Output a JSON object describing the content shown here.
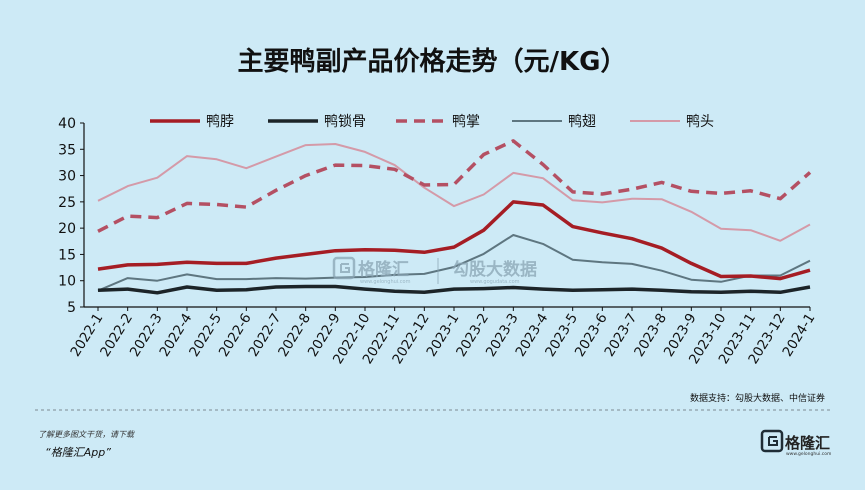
{
  "chart_data": {
    "type": "line",
    "title": "主要鸭副产品价格走势（元/KG）",
    "categories": [
      "2022-1",
      "2022-2",
      "2022-3",
      "2022-4",
      "2022-5",
      "2022-6",
      "2022-7",
      "2022-8",
      "2022-9",
      "2022-10",
      "2022-11",
      "2022-12",
      "2023-1",
      "2023-2",
      "2023-3",
      "2023-4",
      "2023-5",
      "2023-6",
      "2023-7",
      "2023-8",
      "2023-9",
      "2023-10",
      "2023-11",
      "2023-12",
      "2024-1"
    ],
    "ylim": [
      5,
      40
    ],
    "yticks": [
      5,
      10,
      15,
      20,
      25,
      30,
      35,
      40
    ],
    "legend_position": "top",
    "series": [
      {
        "name": "鸭脖",
        "color": "#a51d24",
        "style": "solid",
        "width": 3.5,
        "values": [
          12.2,
          13.0,
          13.1,
          13.5,
          13.3,
          13.3,
          14.3,
          15.0,
          15.7,
          15.9,
          15.8,
          15.4,
          16.4,
          19.6,
          25.0,
          24.4,
          20.3,
          19.1,
          18.0,
          16.2,
          13.3,
          10.8,
          10.9,
          10.4,
          12.0
        ]
      },
      {
        "name": "鸭锁骨",
        "color": "#1c2428",
        "style": "solid",
        "width": 3.5,
        "values": [
          8.2,
          8.4,
          7.7,
          8.8,
          8.2,
          8.3,
          8.8,
          8.9,
          8.9,
          8.4,
          8.0,
          7.8,
          8.4,
          8.5,
          8.7,
          8.4,
          8.2,
          8.3,
          8.4,
          8.2,
          7.9,
          7.8,
          8.0,
          7.8,
          8.8
        ]
      },
      {
        "name": "鸭掌",
        "color": "#b45063",
        "style": "dashed",
        "width": 3.5,
        "values": [
          19.4,
          22.3,
          22.0,
          24.7,
          24.5,
          24.0,
          27.2,
          30.0,
          32.0,
          31.9,
          31.2,
          28.2,
          28.3,
          34.0,
          36.6,
          32.1,
          26.9,
          26.5,
          27.4,
          28.7,
          27.0,
          26.6,
          27.1,
          25.6,
          30.6
        ]
      },
      {
        "name": "鸭翅",
        "color": "#5e7680",
        "style": "solid",
        "width": 2,
        "values": [
          8.1,
          10.5,
          10.0,
          11.2,
          10.3,
          10.3,
          10.5,
          10.4,
          10.6,
          10.7,
          11.1,
          11.3,
          12.6,
          15.1,
          18.7,
          17.0,
          14.0,
          13.5,
          13.2,
          11.9,
          10.2,
          9.8,
          11.0,
          11.0,
          13.8
        ]
      },
      {
        "name": "鸭头",
        "color": "#d49aa8",
        "style": "solid",
        "width": 2,
        "values": [
          25.2,
          28.0,
          29.6,
          33.7,
          33.1,
          31.4,
          33.6,
          35.8,
          36.0,
          34.5,
          32.0,
          27.7,
          24.2,
          26.4,
          30.5,
          29.5,
          25.3,
          24.9,
          25.6,
          25.5,
          23.1,
          19.9,
          19.6,
          17.6,
          20.7
        ]
      }
    ]
  },
  "source": "数据支持：勾股大数据、中信证券",
  "footer": {
    "note": "了解更多图文干货，请下载",
    "app": "“格隆汇App”"
  },
  "watermark": {
    "brand": "格隆汇",
    "brand_sub": "www.gelonghui.com",
    "partner": "勾股大数据",
    "partner_sub": "www.gogudata.com"
  },
  "logo": {
    "text": "格隆汇",
    "sub": "www.gelonghui.com"
  }
}
